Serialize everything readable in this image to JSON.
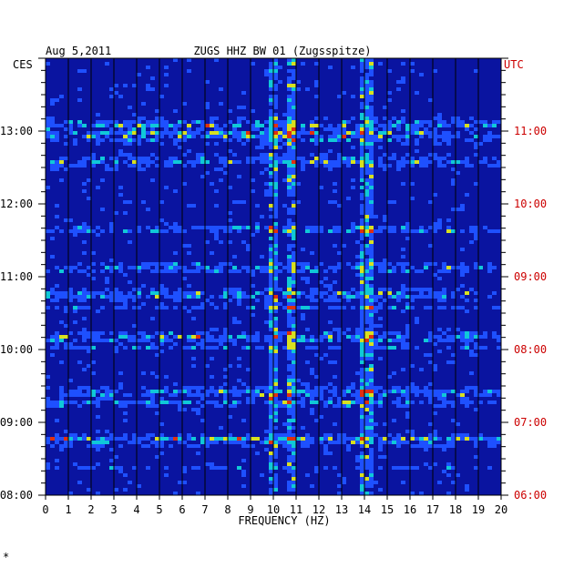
{
  "chart_data": {
    "type": "heatmap",
    "date": "Aug 5,2011",
    "title": "ZUGS HHZ BW 01 (Zugsspitze)",
    "left_timezone": "CES",
    "right_timezone": "UTC",
    "xlabel": "FREQUENCY (HZ)",
    "x_ticks": [
      "0",
      "1",
      "2",
      "3",
      "4",
      "5",
      "6",
      "7",
      "8",
      "9",
      "10",
      "11",
      "12",
      "13",
      "14",
      "15",
      "16",
      "17",
      "18",
      "19",
      "20"
    ],
    "xlim": [
      0,
      20
    ],
    "left_time_ticks": [
      "08:00",
      "09:00",
      "10:00",
      "11:00",
      "12:00",
      "13:00"
    ],
    "right_time_ticks": [
      "06:00",
      "07:00",
      "08:00",
      "09:00",
      "10:00",
      "11:00"
    ],
    "time_range_ces": [
      "08:00",
      "14:00"
    ],
    "grid": true,
    "colors": {
      "low": "#0a14a0",
      "mid": "#1e50ff",
      "mid_high": "#10c8d8",
      "high": "#d8e020",
      "peak": "#e03010",
      "utc_text": "#cc0000",
      "grid": "#000000"
    },
    "persistent_lines_hz": [
      10.0,
      10.8,
      14.0,
      14.3
    ],
    "bright_event_times_ces": [
      "08:45",
      "09:25",
      "10:10",
      "10:45",
      "12:35",
      "12:55",
      "13:05"
    ],
    "footnote": "*"
  }
}
